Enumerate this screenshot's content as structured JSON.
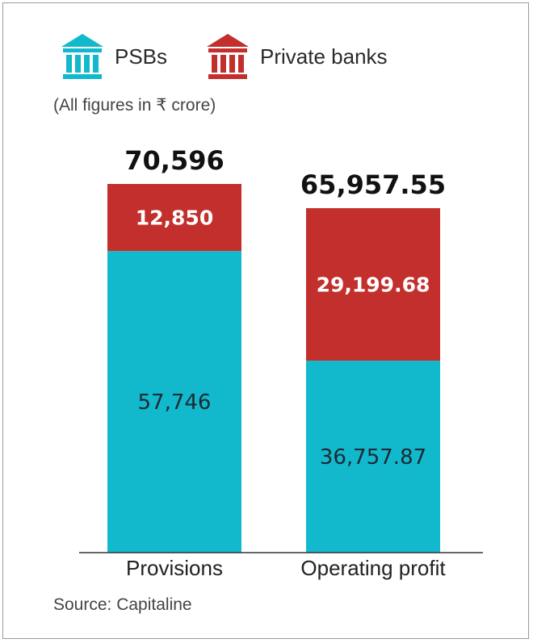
{
  "legend": [
    {
      "label": "PSBs",
      "icon": "bank-building-icon",
      "color": "#12b9cc"
    },
    {
      "label": "Private banks",
      "icon": "bank-building-icon",
      "color": "#c32f2c"
    }
  ],
  "note": "(All figures in ₹ crore)",
  "source": "Source: Capitaline",
  "chart_data": {
    "type": "bar",
    "stacked": true,
    "categories": [
      "Provisions",
      "Operating profit"
    ],
    "series": [
      {
        "name": "PSBs",
        "color": "#12b9cc",
        "values": [
          57746,
          36757.87
        ],
        "labels": [
          "57,746",
          "36,757.87"
        ]
      },
      {
        "name": "Private banks",
        "color": "#c32f2c",
        "values": [
          12850,
          29199.68
        ],
        "labels": [
          "12,850",
          "29,199.68"
        ]
      }
    ],
    "totals": [
      70596,
      65957.55
    ],
    "total_labels": [
      "70,596",
      "65,957.55"
    ],
    "title": "",
    "xlabel": "",
    "ylabel": "",
    "ylim": [
      0,
      70596
    ],
    "grid": false,
    "legend_position": "top-left"
  }
}
